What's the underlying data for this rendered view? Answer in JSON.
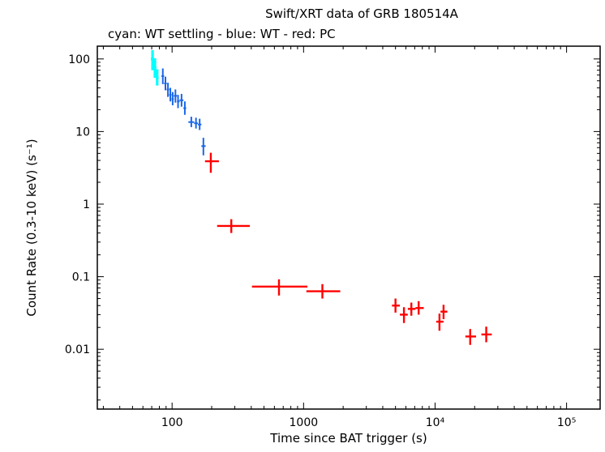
{
  "title": "Swift/XRT data of GRB 180514A",
  "subtitle": "cyan: WT settling - blue: WT - red: PC",
  "xlabel": "Time since BAT trigger (s)",
  "ylabel": "Count Rate (0.3-10 keV) (s⁻¹)",
  "chart_data": {
    "type": "scatter",
    "title": "Swift/XRT data of GRB 180514A",
    "subtitle": "cyan: WT settling - blue: WT - red: PC",
    "xlabel": "Time since BAT trigger (s)",
    "ylabel": "Count Rate (0.3-10 keV) (s⁻¹)",
    "x_scale": "log",
    "y_scale": "log",
    "xlim": [
      27,
      180000
    ],
    "ylim": [
      0.0015,
      150
    ],
    "grid": false,
    "legend_position": "subtitle-text",
    "x_ticks": [
      {
        "value": 100,
        "label": "100"
      },
      {
        "value": 1000,
        "label": "1000"
      },
      {
        "value": 10000,
        "label": "10⁴"
      },
      {
        "value": 100000,
        "label": "10⁵"
      }
    ],
    "y_ticks": [
      {
        "value": 100,
        "label": "100"
      },
      {
        "value": 10,
        "label": "10"
      },
      {
        "value": 1,
        "label": "1"
      },
      {
        "value": 0.1,
        "label": "0.1"
      },
      {
        "value": 0.01,
        "label": "0.01"
      }
    ],
    "point_format": [
      "t",
      "t_lo",
      "t_hi",
      "rate",
      "rate_lo",
      "rate_hi"
    ],
    "series": [
      {
        "name": "WT settling",
        "color": "#00ffff",
        "stroke_width": 3.2,
        "points": [
          [
            71,
            69,
            73,
            100,
            70,
            132
          ],
          [
            74,
            72,
            76,
            75,
            55,
            102
          ],
          [
            77,
            75,
            79,
            55,
            43,
            72
          ]
        ]
      },
      {
        "name": "WT",
        "color": "#1a66e8",
        "stroke_width": 2,
        "points": [
          [
            85,
            83,
            87,
            58,
            45,
            74
          ],
          [
            89,
            87,
            91,
            46,
            37,
            57
          ],
          [
            93,
            91,
            95,
            38,
            30,
            47
          ],
          [
            97,
            95,
            99,
            32,
            26,
            40
          ],
          [
            101,
            99,
            103,
            28,
            23,
            35
          ],
          [
            106,
            103,
            109,
            31,
            25,
            38
          ],
          [
            111,
            109,
            114,
            26,
            21,
            32
          ],
          [
            118,
            114,
            122,
            27,
            22,
            33
          ],
          [
            125,
            122,
            128,
            21,
            17,
            26
          ],
          [
            140,
            133,
            147,
            13.5,
            11.5,
            16
          ],
          [
            152,
            147,
            157,
            13,
            11,
            15.5
          ],
          [
            162,
            157,
            167,
            12.5,
            10.5,
            15
          ],
          [
            173,
            167,
            180,
            6.3,
            4.7,
            8.2
          ]
        ]
      },
      {
        "name": "PC",
        "color": "#ff0000",
        "stroke_width": 2.4,
        "points": [
          [
            197,
            178,
            227,
            3.9,
            2.7,
            5.1
          ],
          [
            282,
            220,
            390,
            0.5,
            0.4,
            0.62
          ],
          [
            650,
            405,
            1070,
            0.073,
            0.055,
            0.092
          ],
          [
            1390,
            1050,
            1900,
            0.063,
            0.05,
            0.079
          ],
          [
            5000,
            4700,
            5400,
            0.04,
            0.032,
            0.05
          ],
          [
            5800,
            5400,
            6200,
            0.03,
            0.023,
            0.038
          ],
          [
            6600,
            6200,
            7100,
            0.036,
            0.029,
            0.044
          ],
          [
            7500,
            7100,
            8200,
            0.037,
            0.03,
            0.046
          ],
          [
            10800,
            10200,
            11600,
            0.024,
            0.018,
            0.031
          ],
          [
            11600,
            11000,
            12400,
            0.033,
            0.026,
            0.041
          ],
          [
            18500,
            17000,
            20500,
            0.015,
            0.0115,
            0.019
          ],
          [
            24500,
            22500,
            27000,
            0.016,
            0.0125,
            0.0205
          ]
        ]
      }
    ]
  }
}
